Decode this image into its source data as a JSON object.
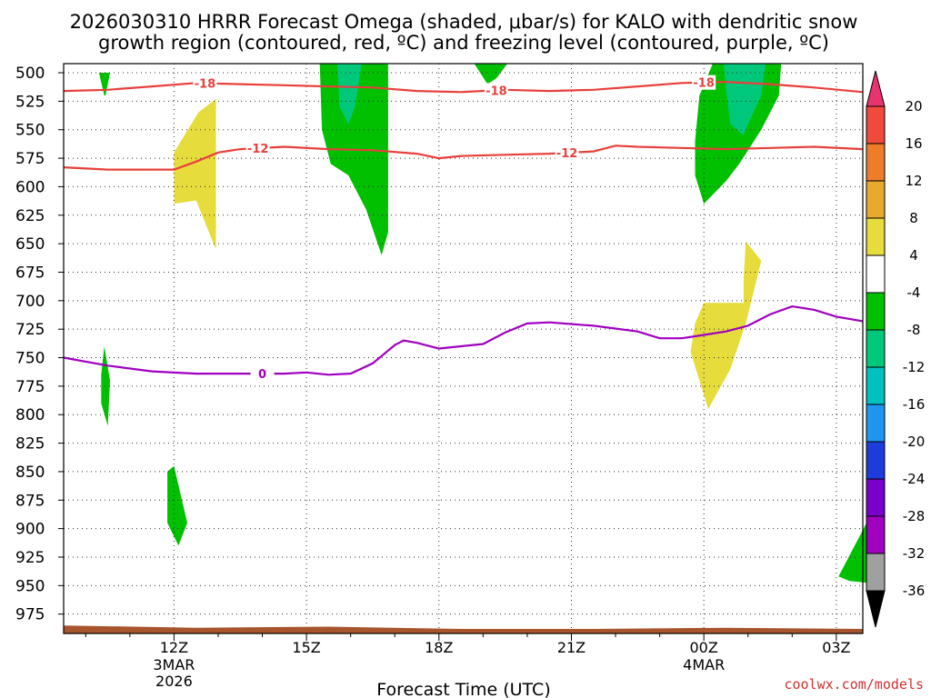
{
  "chart_data": {
    "type": "time-height",
    "title_line1": "2026030310 HRRR Forecast Omega (shaded, μbar/s) for KALO with dendritic snow",
    "title_line2": "growth region (contoured, red, ºC) and freezing level (contoured, purple, ºC)",
    "xlabel": "Forecast Time (UTC)",
    "credit": "coolwx.com/models",
    "x_range_hours": [
      9.5,
      27.6
    ],
    "y_levels": [
      500,
      525,
      550,
      575,
      600,
      625,
      650,
      675,
      700,
      725,
      750,
      775,
      800,
      825,
      850,
      875,
      900,
      925,
      950,
      975
    ],
    "y_range_mb": [
      492,
      992
    ],
    "x_ticks": [
      {
        "hour": 12,
        "label": "12Z",
        "sub1": "3MAR",
        "sub2": "2026"
      },
      {
        "hour": 15,
        "label": "15Z",
        "sub1": "",
        "sub2": ""
      },
      {
        "hour": 18,
        "label": "18Z",
        "sub1": "",
        "sub2": ""
      },
      {
        "hour": 21,
        "label": "21Z",
        "sub1": "",
        "sub2": ""
      },
      {
        "hour": 24,
        "label": "00Z",
        "sub1": "4MAR",
        "sub2": ""
      },
      {
        "hour": 27,
        "label": "03Z",
        "sub1": "",
        "sub2": ""
      }
    ],
    "colorbar": {
      "labels": [
        "20",
        "16",
        "12",
        "8",
        "4",
        "-4",
        "-8",
        "-12",
        "-16",
        "-20",
        "-24",
        "-28",
        "-32",
        "-36"
      ],
      "colors": [
        "#e8336e",
        "#f04a3c",
        "#ed7d2a",
        "#e7aa2c",
        "#e6dc3c",
        "#ffffff",
        "#00c000",
        "#00c87a",
        "#00c0c0",
        "#1e96f0",
        "#1e3cdc",
        "#7800c8",
        "#a000c0",
        "#a0a0a0",
        "#000000"
      ]
    },
    "omega_regions": [
      {
        "name": "rising-10z-upper",
        "value": -8,
        "points": [
          [
            10.3,
            500
          ],
          [
            10.55,
            500
          ],
          [
            10.45,
            520
          ],
          [
            10.42,
            520
          ]
        ]
      },
      {
        "name": "rising-10z-mid",
        "value": -8,
        "points": [
          [
            10.42,
            740
          ],
          [
            10.55,
            770
          ],
          [
            10.5,
            810
          ],
          [
            10.35,
            790
          ],
          [
            10.35,
            765
          ]
        ]
      },
      {
        "name": "rising-12z-low",
        "value": -8,
        "points": [
          [
            11.85,
            850
          ],
          [
            12.0,
            845
          ],
          [
            12.3,
            895
          ],
          [
            12.1,
            915
          ],
          [
            11.85,
            895
          ]
        ]
      },
      {
        "name": "sinking-12z",
        "value": 6,
        "points": [
          [
            12.0,
            570
          ],
          [
            12.55,
            535
          ],
          [
            12.95,
            523
          ],
          [
            12.95,
            655
          ],
          [
            12.5,
            612
          ],
          [
            12.0,
            615
          ]
        ]
      },
      {
        "name": "rising-16z",
        "value": -8,
        "points": [
          [
            15.3,
            492
          ],
          [
            16.85,
            492
          ],
          [
            16.85,
            640
          ],
          [
            16.7,
            660
          ],
          [
            16.35,
            620
          ],
          [
            15.95,
            590
          ],
          [
            15.55,
            580
          ],
          [
            15.35,
            550
          ]
        ]
      },
      {
        "name": "rising-16z-core",
        "value": -12,
        "points": [
          [
            15.7,
            492
          ],
          [
            16.25,
            492
          ],
          [
            16.1,
            530
          ],
          [
            15.95,
            545
          ],
          [
            15.75,
            530
          ]
        ]
      },
      {
        "name": "rising-19z",
        "value": -8,
        "points": [
          [
            18.8,
            492
          ],
          [
            19.55,
            492
          ],
          [
            19.3,
            505
          ],
          [
            19.1,
            510
          ]
        ]
      },
      {
        "name": "rising-00z",
        "value": -8,
        "points": [
          [
            24.2,
            492
          ],
          [
            25.75,
            492
          ],
          [
            25.7,
            520
          ],
          [
            25.3,
            550
          ],
          [
            24.8,
            580
          ],
          [
            24.5,
            595
          ],
          [
            24.0,
            615
          ],
          [
            23.8,
            590
          ],
          [
            23.8,
            560
          ],
          [
            23.9,
            520
          ]
        ]
      },
      {
        "name": "rising-00z-core",
        "value": -12,
        "points": [
          [
            24.45,
            492
          ],
          [
            25.4,
            492
          ],
          [
            25.3,
            520
          ],
          [
            25.0,
            545
          ],
          [
            24.9,
            555
          ],
          [
            24.6,
            545
          ],
          [
            24.5,
            515
          ]
        ]
      },
      {
        "name": "sinking-00z",
        "value": 6,
        "points": [
          [
            24.0,
            702
          ],
          [
            24.9,
            702
          ],
          [
            24.9,
            680
          ],
          [
            24.95,
            648
          ],
          [
            25.3,
            665
          ],
          [
            24.95,
            720
          ],
          [
            24.6,
            760
          ],
          [
            24.1,
            795
          ],
          [
            23.7,
            745
          ],
          [
            23.8,
            720
          ]
        ]
      },
      {
        "name": "rising-03z-low",
        "value": -8,
        "points": [
          [
            27.05,
            942
          ],
          [
            27.55,
            905
          ],
          [
            27.8,
            886
          ],
          [
            27.8,
            948
          ],
          [
            27.3,
            946
          ]
        ]
      }
    ],
    "contours": [
      {
        "name": "isotherm-minus-18",
        "level": -18,
        "color": "#e8403c",
        "points": [
          [
            9.5,
            516
          ],
          [
            10.5,
            515
          ],
          [
            11.5,
            512
          ],
          [
            12.5,
            509
          ],
          [
            13.5,
            510
          ],
          [
            14.5,
            511
          ],
          [
            15.5,
            512
          ],
          [
            16.5,
            513
          ],
          [
            17.5,
            516
          ],
          [
            18.5,
            517
          ],
          [
            19.5,
            515
          ],
          [
            20.5,
            516
          ],
          [
            21.5,
            515
          ],
          [
            22.5,
            512
          ],
          [
            23.5,
            509
          ],
          [
            24.5,
            508
          ],
          [
            25.5,
            510
          ],
          [
            26.5,
            513
          ],
          [
            27.6,
            517
          ]
        ],
        "label_hours": [
          12.7,
          19.3,
          24.0
        ]
      },
      {
        "name": "isotherm-minus-12",
        "level": -12,
        "color": "#e8403c",
        "points": [
          [
            9.5,
            583
          ],
          [
            10.5,
            585
          ],
          [
            11.5,
            585
          ],
          [
            12.0,
            585
          ],
          [
            12.5,
            578
          ],
          [
            13.0,
            570
          ],
          [
            13.5,
            567
          ],
          [
            14.5,
            565
          ],
          [
            15.5,
            567
          ],
          [
            16.5,
            568
          ],
          [
            17.5,
            571
          ],
          [
            18.0,
            575
          ],
          [
            18.5,
            573
          ],
          [
            19.5,
            572
          ],
          [
            20.5,
            571
          ],
          [
            21.5,
            569
          ],
          [
            22.0,
            564
          ],
          [
            22.5,
            565
          ],
          [
            23.5,
            566
          ],
          [
            24.5,
            567
          ],
          [
            25.5,
            566
          ],
          [
            26.5,
            565
          ],
          [
            27.6,
            567
          ]
        ],
        "label_hours": [
          13.9,
          20.9
        ]
      },
      {
        "name": "isotherm-zero",
        "level": 0,
        "color": "#a000c0",
        "points": [
          [
            9.5,
            750
          ],
          [
            10.5,
            757
          ],
          [
            11.5,
            762
          ],
          [
            12.5,
            764
          ],
          [
            13.5,
            764
          ],
          [
            14.5,
            764
          ],
          [
            15.0,
            763
          ],
          [
            15.5,
            765
          ],
          [
            16.0,
            764
          ],
          [
            16.5,
            755
          ],
          [
            17.0,
            739
          ],
          [
            17.2,
            735
          ],
          [
            17.5,
            737
          ],
          [
            18.0,
            742
          ],
          [
            18.5,
            740
          ],
          [
            19.0,
            738
          ],
          [
            19.5,
            728
          ],
          [
            20.0,
            720
          ],
          [
            20.5,
            719
          ],
          [
            21.5,
            722
          ],
          [
            22.5,
            727
          ],
          [
            23.0,
            733
          ],
          [
            23.5,
            733
          ],
          [
            24.0,
            730
          ],
          [
            24.5,
            727
          ],
          [
            25.0,
            722
          ],
          [
            25.5,
            712
          ],
          [
            26.0,
            705
          ],
          [
            26.5,
            708
          ],
          [
            27.0,
            714
          ],
          [
            27.6,
            718
          ]
        ],
        "label_hours": [
          14.0
        ]
      }
    ],
    "terrain": {
      "color": "#a8542c",
      "top_points": [
        [
          9.5,
          985
        ],
        [
          12.5,
          987
        ],
        [
          15.5,
          986
        ],
        [
          18.5,
          988
        ],
        [
          21.5,
          988
        ],
        [
          24.5,
          987
        ],
        [
          27.6,
          988
        ]
      ]
    }
  }
}
